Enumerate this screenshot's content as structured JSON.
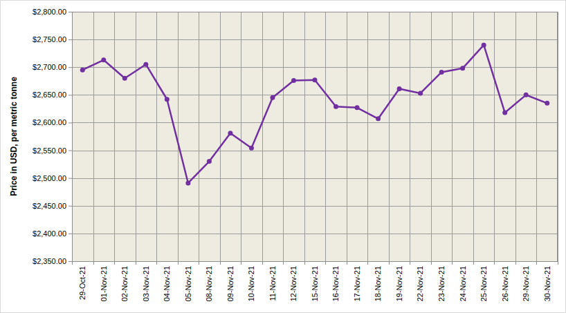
{
  "chart_data": {
    "type": "line",
    "y_label": "Price in USD, per metric tonne",
    "categories": [
      "29-Oct-21",
      "01-Nov-21",
      "02-Nov-21",
      "03-Nov-21",
      "04-Nov-21",
      "05-Nov-21",
      "08-Nov-21",
      "09-Nov-21",
      "10-Nov-21",
      "11-Nov-21",
      "12-Nov-21",
      "15-Nov-21",
      "16-Nov-21",
      "17-Nov-21",
      "18-Nov-21",
      "19-Nov-21",
      "22-Nov-21",
      "23-Nov-21",
      "24-Nov-21",
      "25-Nov-21",
      "26-Nov-21",
      "29-Nov-21",
      "30-Nov-21"
    ],
    "values": [
      2695,
      2713,
      2680,
      2705,
      2642,
      2491,
      2530,
      2581,
      2554,
      2645,
      2676,
      2677,
      2629,
      2627,
      2607,
      2661,
      2653,
      2691,
      2698,
      2740,
      2618,
      2650,
      2635
    ],
    "color": "#7030a0",
    "marker": "circle",
    "line_style": "solid",
    "ylim": [
      2350,
      2800
    ],
    "yticks": [
      {
        "value": 2350,
        "label": "$2,350.00"
      },
      {
        "value": 2400,
        "label": "$2,400.00"
      },
      {
        "value": 2450,
        "label": "$2,450.00"
      },
      {
        "value": 2500,
        "label": "$2,500.00"
      },
      {
        "value": 2550,
        "label": "$2,550.00"
      },
      {
        "value": 2600,
        "label": "$2,600.00"
      },
      {
        "value": 2650,
        "label": "$2,650.00"
      },
      {
        "value": 2700,
        "label": "$2,700.00"
      },
      {
        "value": 2750,
        "label": "$2,750.00"
      },
      {
        "value": 2800,
        "label": "$2,800.00"
      }
    ],
    "grid": true
  }
}
